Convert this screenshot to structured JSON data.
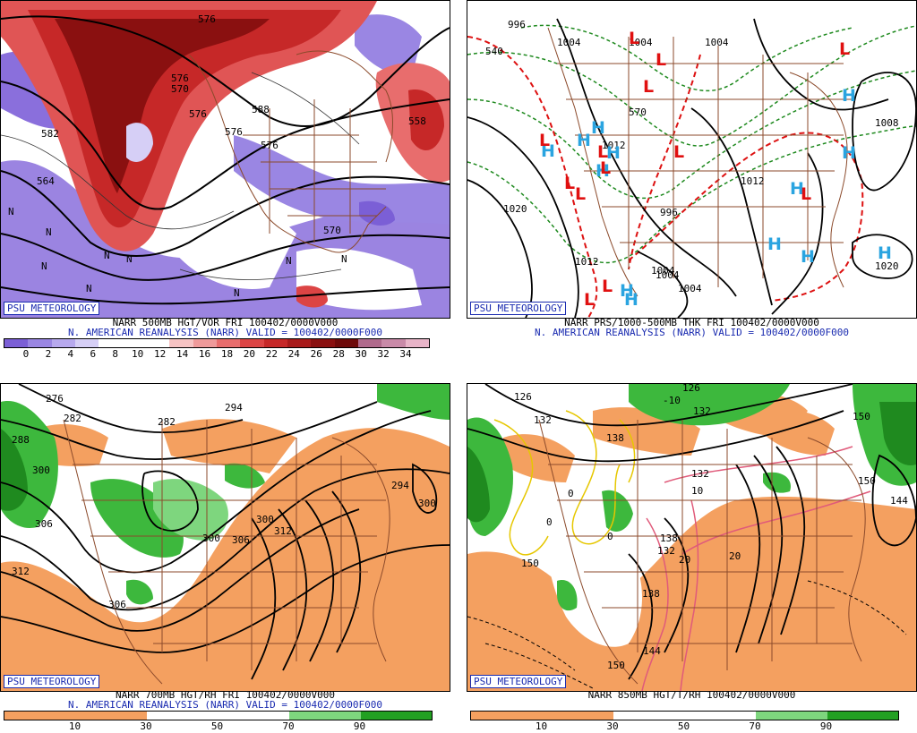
{
  "panels": [
    {
      "id": "tl",
      "badge": "PSU METEOROLOGY",
      "caption1": "NARR 500MB HGT/VOR FRI 100402/0000V000",
      "caption2": "N. AMERICAN REANALYSIS (NARR) VALID = 100402/0000F000",
      "colorbar": {
        "ticks": [
          "0",
          "2",
          "4",
          "6",
          "8",
          "10",
          "12",
          "14",
          "16",
          "18",
          "20",
          "22",
          "24",
          "26",
          "28",
          "30",
          "32",
          "34"
        ],
        "colors": [
          "#7b5fd6",
          "#9a86e3",
          "#b7a9ee",
          "#d6cff6",
          "#ffffff",
          "#ffffff",
          "#ffffff",
          "#f6c3c3",
          "#ef9a9a",
          "#e86d6d",
          "#dc4444",
          "#c62828",
          "#a81a1a",
          "#8a1010",
          "#6e0a0a",
          "#b06a8c",
          "#c98aa8",
          "#e8b4c8"
        ]
      },
      "contour_labels": [
        "576",
        "570",
        "588",
        "582",
        "576",
        "558",
        "576",
        "576",
        "576",
        "564",
        "570"
      ],
      "n_marks": [
        "N",
        "N",
        "N",
        "N",
        "N",
        "N",
        "N",
        "N",
        "N"
      ]
    },
    {
      "id": "tr",
      "badge": "PSU METEOROLOGY",
      "caption1": "NARR PRS/1000-500MB THK FRI 100402/0000V000",
      "caption2": "N. AMERICAN REANALYSIS (NARR) VALID = 100402/0000F000",
      "isobar_labels": [
        "996",
        "1004",
        "1004",
        "1004",
        "1012",
        "1020",
        "996",
        "1012",
        "1004",
        "1004",
        "1012",
        "1004",
        "1008",
        "1020",
        "540",
        "570"
      ],
      "highs": [
        "H",
        "H",
        "H",
        "H",
        "H",
        "H",
        "H",
        "H",
        "H",
        "H",
        "H",
        "H",
        "H"
      ],
      "lows": [
        "L",
        "L",
        "L",
        "L",
        "L",
        "L",
        "L",
        "L",
        "L",
        "L",
        "L",
        "L",
        "L"
      ]
    },
    {
      "id": "bl",
      "badge": "PSU METEOROLOGY",
      "caption1": "NARR 700MB HGT/RH FRI 100402/0000V000",
      "caption2": "N. AMERICAN REANALYSIS (NARR) VALID = 100402/0000F000",
      "colorbar": {
        "ticks": [
          "10",
          "30",
          "50",
          "70",
          "90"
        ],
        "colors": [
          "#f4a060",
          "#f4a060",
          "#ffffff",
          "#ffffff",
          "#7ed67e",
          "#22a022"
        ]
      },
      "contour_labels": [
        "276",
        "282",
        "288",
        "282",
        "294",
        "300",
        "306",
        "312",
        "300",
        "306",
        "300",
        "312",
        "294",
        "300",
        "306"
      ]
    },
    {
      "id": "br",
      "badge": "PSU METEOROLOGY",
      "caption1": "NARR 850MB HGT/T/RH 100402/0000V000",
      "caption2": "",
      "colorbar": {
        "ticks": [
          "10",
          "30",
          "50",
          "70",
          "90"
        ],
        "colors": [
          "#f4a060",
          "#f4a060",
          "#ffffff",
          "#ffffff",
          "#7ed67e",
          "#22a022"
        ]
      },
      "contour_labels": [
        "126",
        "132",
        "138",
        "126",
        "132",
        "150",
        "150",
        "144",
        "150",
        "132",
        "138",
        "144",
        "150",
        "138",
        "132"
      ],
      "temp_labels": [
        "-10",
        "10",
        "20",
        "20",
        "0",
        "0",
        "0"
      ]
    }
  ]
}
